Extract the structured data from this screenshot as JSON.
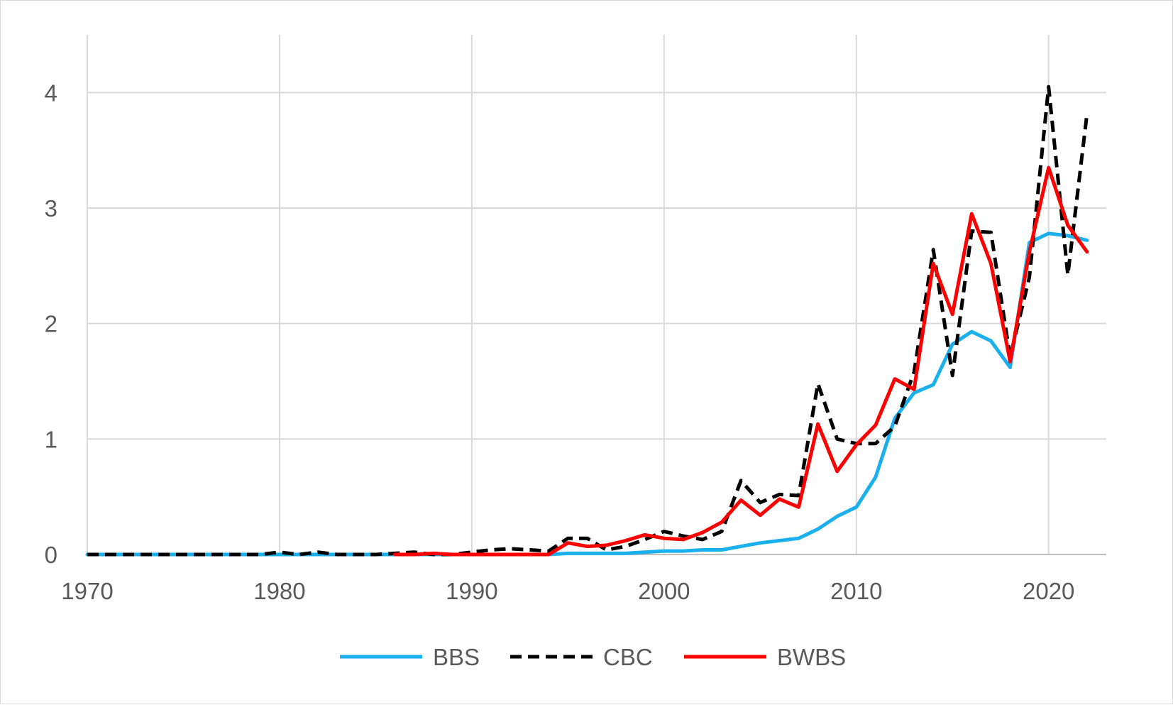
{
  "chart_data": {
    "type": "line",
    "title": "",
    "xlabel": "",
    "ylabel": "",
    "xlim": [
      1970,
      2023
    ],
    "ylim": [
      0,
      4.5
    ],
    "x_ticks": [
      "1970",
      "1980",
      "1990",
      "2000",
      "2010",
      "2020"
    ],
    "y_ticks": [
      "0",
      "1",
      "2",
      "3",
      "4"
    ],
    "grid": "both",
    "legend_position": "bottom",
    "series": [
      {
        "name": "BBS",
        "color": "#1ab0ee",
        "style": "solid",
        "x": [
          1970,
          1971,
          1972,
          1973,
          1974,
          1975,
          1976,
          1977,
          1978,
          1979,
          1980,
          1981,
          1982,
          1983,
          1984,
          1985,
          1986,
          1987,
          1988,
          1989,
          1990,
          1991,
          1992,
          1993,
          1994,
          1995,
          1996,
          1997,
          1998,
          1999,
          2000,
          2001,
          2002,
          2003,
          2004,
          2005,
          2006,
          2007,
          2008,
          2009,
          2010,
          2011,
          2012,
          2013,
          2014,
          2015,
          2016,
          2017,
          2018,
          2019,
          2020,
          2021,
          2022
        ],
        "y": [
          0,
          0,
          0,
          0,
          0,
          0,
          0,
          0,
          0,
          0,
          0,
          0,
          0,
          0,
          0,
          0,
          0,
          0,
          0,
          0,
          0,
          0,
          0,
          0,
          0,
          0.01,
          0.01,
          0.01,
          0.01,
          0.02,
          0.03,
          0.03,
          0.04,
          0.04,
          0.07,
          0.1,
          0.12,
          0.14,
          0.22,
          0.33,
          0.41,
          0.67,
          1.18,
          1.4,
          1.47,
          1.82,
          1.93,
          1.85,
          1.62,
          2.7,
          2.78,
          2.76,
          2.72
        ]
      },
      {
        "name": "CBC",
        "color": "#000000",
        "style": "dashed",
        "x": [
          1970,
          1971,
          1972,
          1973,
          1974,
          1975,
          1976,
          1977,
          1978,
          1979,
          1980,
          1981,
          1982,
          1983,
          1984,
          1985,
          1986,
          1987,
          1988,
          1989,
          1990,
          1991,
          1992,
          1993,
          1994,
          1995,
          1996,
          1997,
          1998,
          1999,
          2000,
          2001,
          2002,
          2003,
          2004,
          2005,
          2006,
          2007,
          2008,
          2009,
          2010,
          2011,
          2012,
          2013,
          2014,
          2015,
          2016,
          2017,
          2018,
          2019,
          2020,
          2021,
          2022
        ],
        "y": [
          0,
          0,
          0,
          0,
          0,
          0,
          0,
          0,
          0,
          0,
          0.02,
          0,
          0.02,
          0,
          0,
          0,
          0.01,
          0.02,
          0,
          0,
          0.02,
          0.04,
          0.05,
          0.04,
          0.03,
          0.14,
          0.14,
          0.04,
          0.07,
          0.13,
          0.2,
          0.16,
          0.13,
          0.2,
          0.64,
          0.45,
          0.52,
          0.51,
          1.48,
          1.0,
          0.96,
          0.96,
          1.11,
          1.58,
          2.64,
          1.55,
          2.8,
          2.79,
          1.71,
          2.4,
          4.05,
          2.42,
          3.82
        ]
      },
      {
        "name": "BWBS",
        "color": "#ff0000",
        "style": "solid",
        "x": [
          1986,
          1987,
          1988,
          1989,
          1990,
          1991,
          1992,
          1993,
          1994,
          1995,
          1996,
          1997,
          1998,
          1999,
          2000,
          2001,
          2002,
          2003,
          2004,
          2005,
          2006,
          2007,
          2008,
          2009,
          2010,
          2011,
          2012,
          2013,
          2014,
          2015,
          2016,
          2017,
          2018,
          2019,
          2020,
          2021,
          2022
        ],
        "y": [
          0,
          0,
          0.01,
          0,
          0,
          0,
          0,
          0,
          0,
          0.1,
          0.07,
          0.08,
          0.12,
          0.17,
          0.14,
          0.13,
          0.19,
          0.28,
          0.47,
          0.34,
          0.48,
          0.41,
          1.13,
          0.72,
          0.95,
          1.12,
          1.52,
          1.43,
          2.52,
          2.08,
          2.95,
          2.52,
          1.67,
          2.62,
          3.35,
          2.85,
          2.62
        ]
      }
    ]
  }
}
